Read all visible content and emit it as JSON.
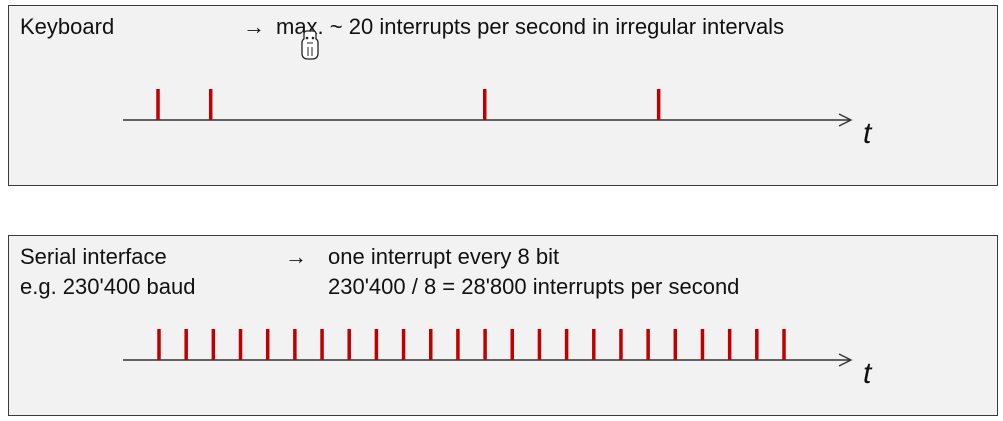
{
  "keyboard": {
    "title": "Keyboard",
    "arrow": "→",
    "description": "max. ~ 20 interrupts per second in irregular intervals",
    "axis_label": "t",
    "interrupt_times": [
      0.0,
      0.1,
      0.62,
      0.95
    ]
  },
  "serial": {
    "title_line1": "Serial interface",
    "title_line2": "e.g. 230'400 baud",
    "arrow": "→",
    "line1": "one interrupt every 8 bit",
    "line2": "230'400 / 8  = 28'800 interrupts per second",
    "axis_label": "t",
    "interrupt_count": 24
  },
  "colors": {
    "tick": "#c00000",
    "axis": "#333333",
    "panel_bg": "#f2f2f2",
    "panel_border": "#3a3a3a"
  }
}
